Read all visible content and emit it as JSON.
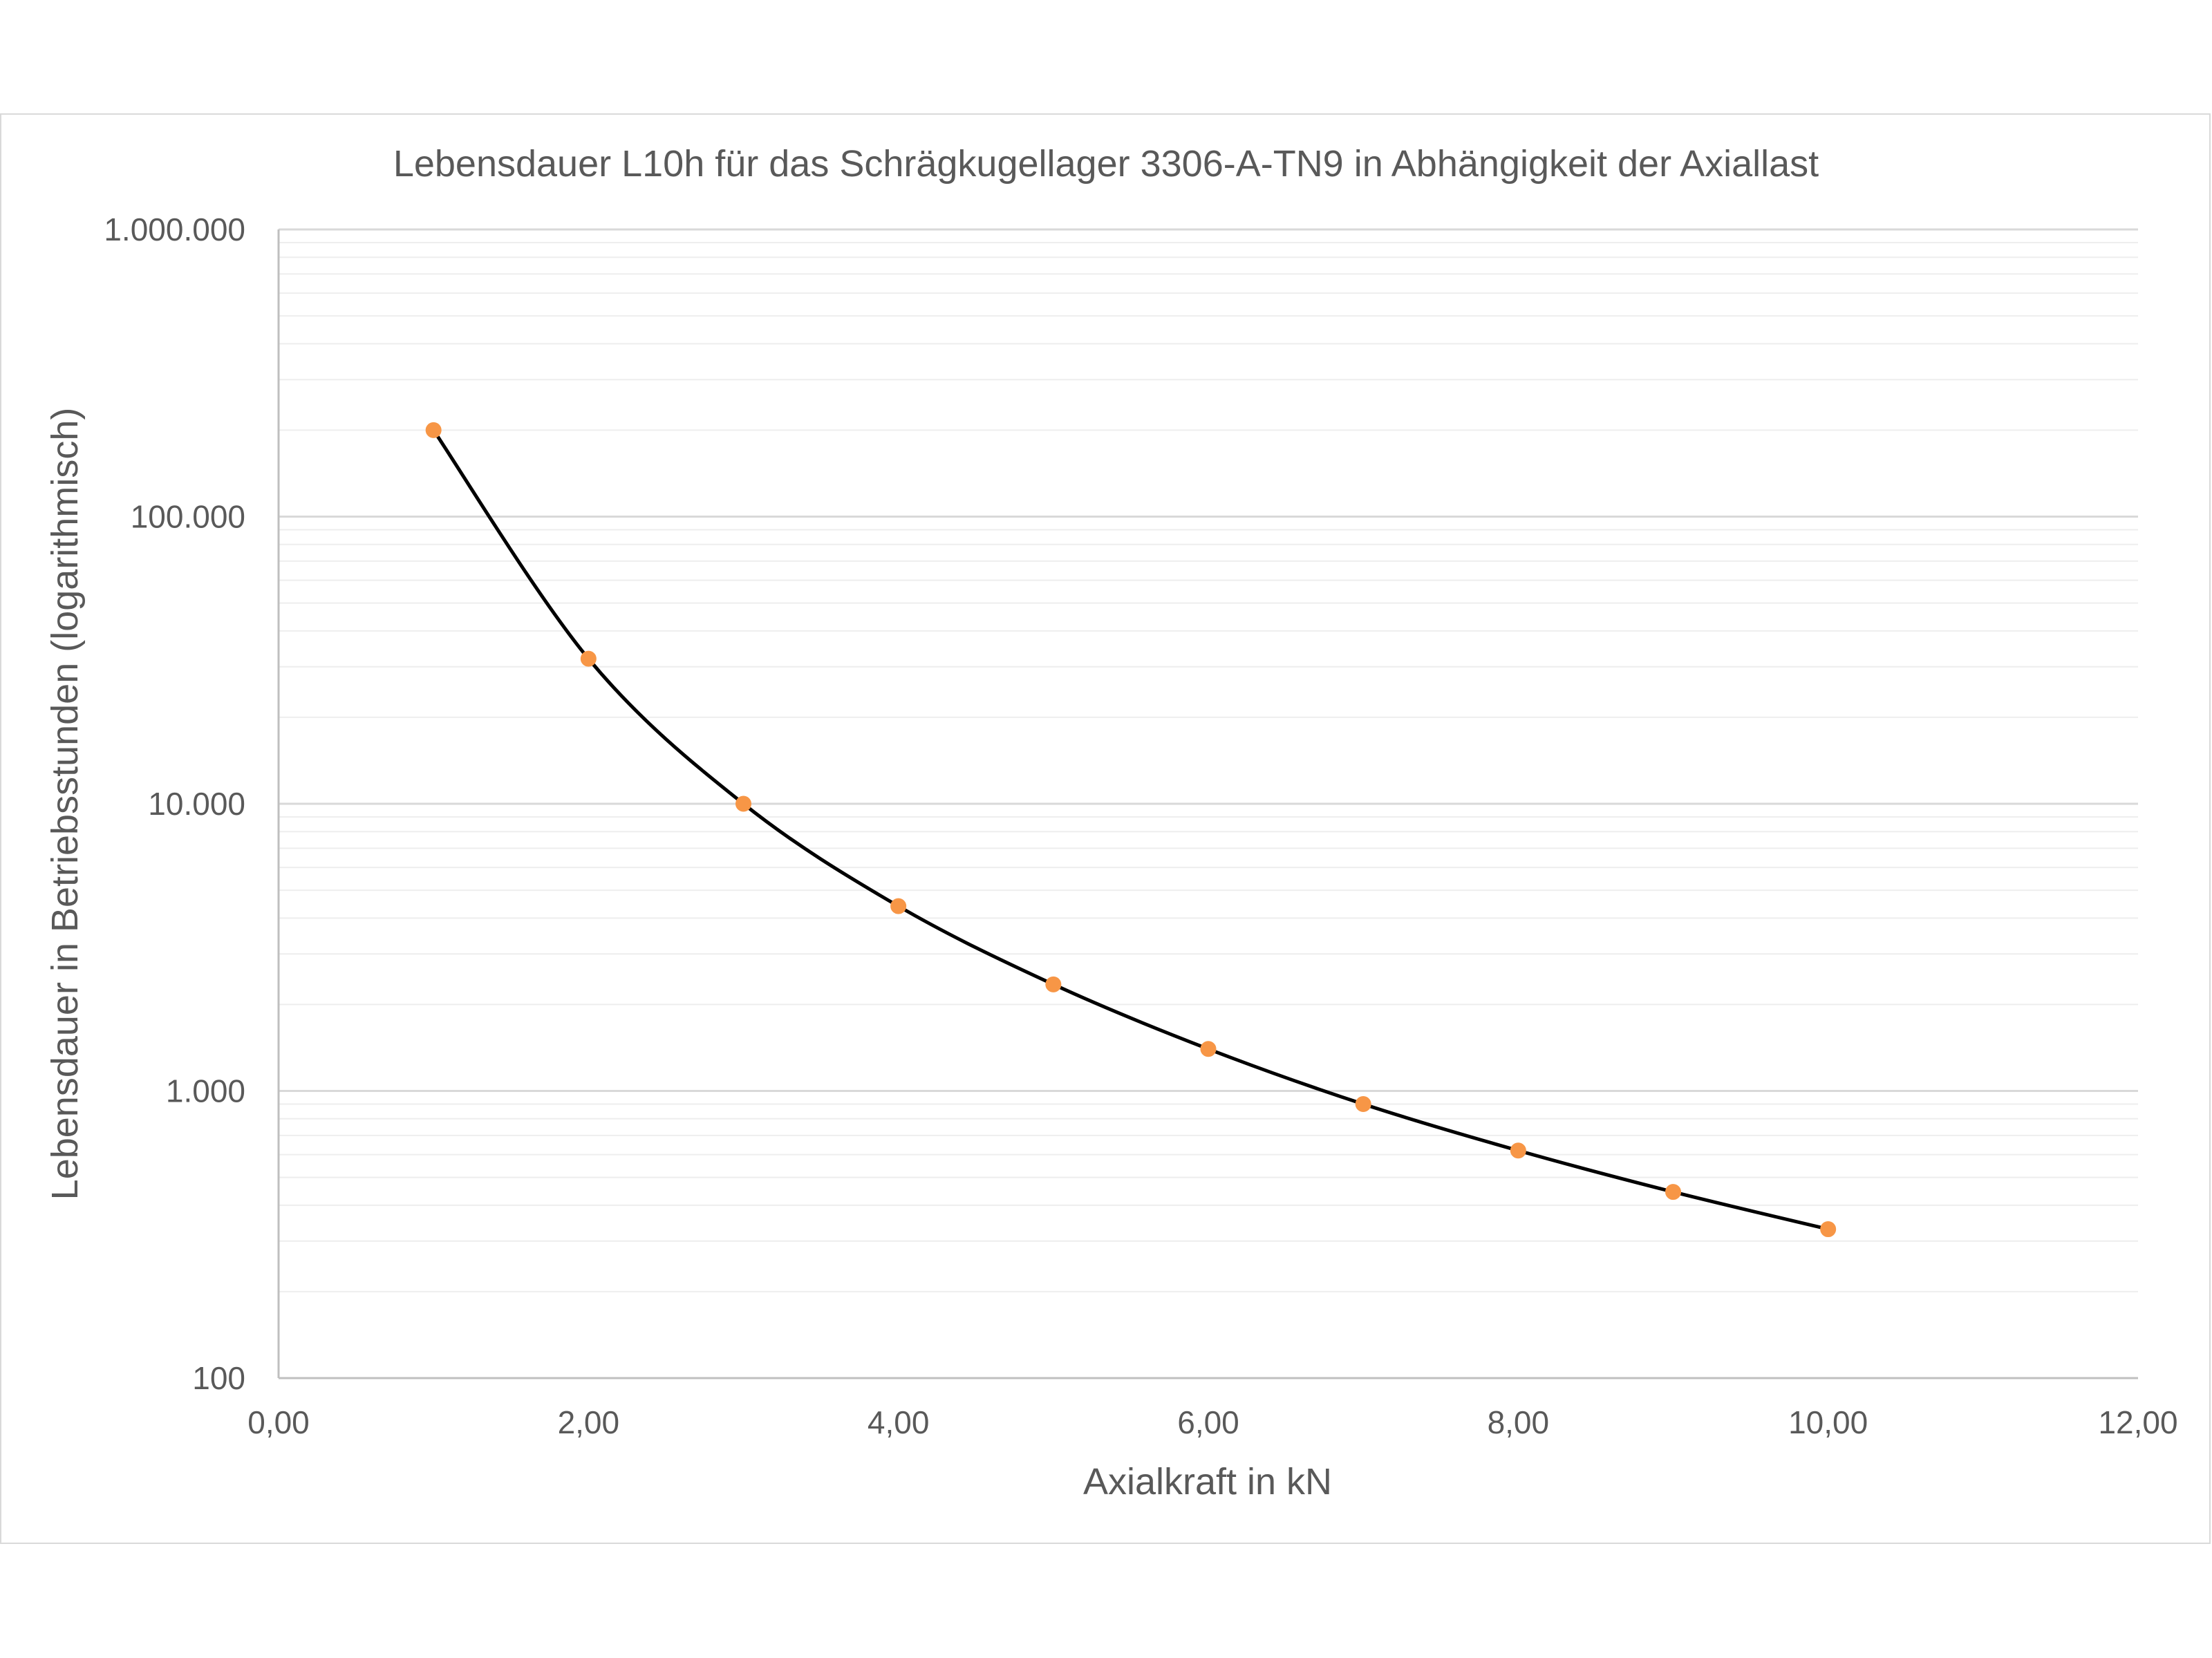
{
  "chart_data": {
    "type": "scatter",
    "title": "Lebensdauer L10h für das Schrägkugellager 3306-A-TN9 in Abhängigkeit der Axiallast",
    "xlabel": "Axialkraft in kN",
    "ylabel": "Lebensdauer in Betriebsstunden (logarithmisch)",
    "xlim": [
      0,
      12
    ],
    "ylim": [
      100,
      1000000
    ],
    "yscale": "log",
    "grid": "major and minor horizontal",
    "smooth_line": true,
    "x_ticks": [
      {
        "value": 0,
        "label": "0,00"
      },
      {
        "value": 2,
        "label": "2,00"
      },
      {
        "value": 4,
        "label": "4,00"
      },
      {
        "value": 6,
        "label": "6,00"
      },
      {
        "value": 8,
        "label": "8,00"
      },
      {
        "value": 10,
        "label": "10,00"
      },
      {
        "value": 12,
        "label": "12,00"
      }
    ],
    "y_ticks": [
      {
        "value": 100,
        "label": "100"
      },
      {
        "value": 1000,
        "label": "1.000"
      },
      {
        "value": 10000,
        "label": "10.000"
      },
      {
        "value": 100000,
        "label": "100.000"
      },
      {
        "value": 1000000,
        "label": "1.000.000"
      }
    ],
    "series": [
      {
        "x": [
          1,
          2,
          3,
          4,
          5,
          6,
          7,
          8,
          9,
          10
        ],
        "y": [
          200000,
          32000,
          10000,
          4400,
          2350,
          1400,
          900,
          620,
          445,
          330
        ]
      }
    ],
    "colors": {
      "line": "#000000",
      "marker": "#f79646",
      "grid": "#d9d9d9",
      "minor_grid": "#eeeeee",
      "text": "#595959"
    }
  }
}
